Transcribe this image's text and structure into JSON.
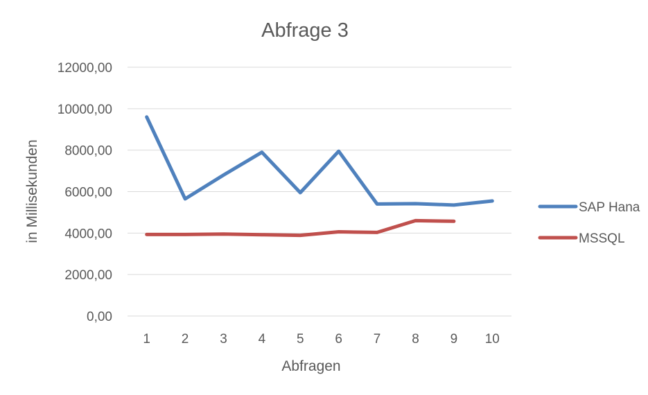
{
  "chart_data": {
    "type": "line",
    "title": "Abfrage 3",
    "xlabel": "Abfragen",
    "ylabel": "in Millisekunden",
    "categories": [
      "1",
      "2",
      "3",
      "4",
      "5",
      "6",
      "7",
      "8",
      "9",
      "10"
    ],
    "y_ticks": [
      "0,00",
      "2000,00",
      "4000,00",
      "6000,00",
      "8000,00",
      "10000,00",
      "12000,00"
    ],
    "ylim": [
      0,
      12000
    ],
    "grid": true,
    "legend_position": "right",
    "series": [
      {
        "name": "SAP Hana",
        "color": "#4f81bd",
        "values": [
          9600,
          5650,
          6800,
          7900,
          5950,
          7950,
          5400,
          5420,
          5350,
          5550
        ]
      },
      {
        "name": "MSSQL",
        "color": "#c0504d",
        "values": [
          3930,
          3930,
          3950,
          3920,
          3890,
          4060,
          4030,
          4600,
          4570,
          null
        ]
      }
    ]
  }
}
